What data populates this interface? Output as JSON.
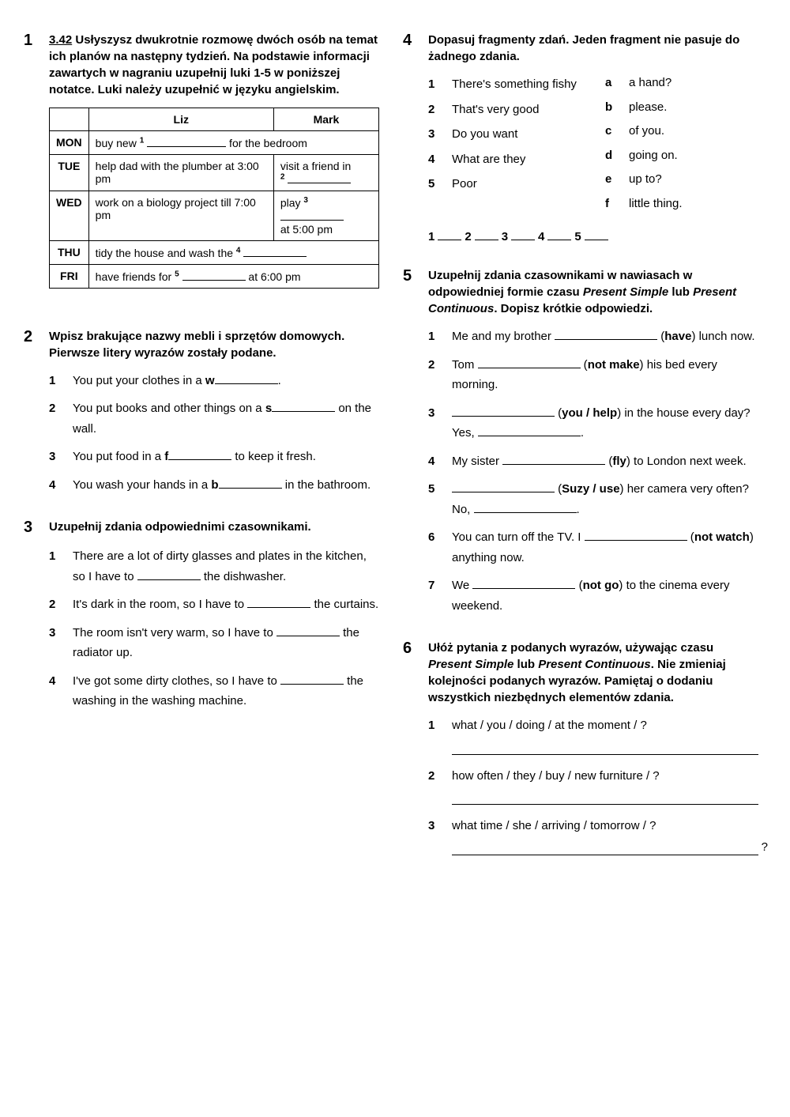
{
  "ex1": {
    "num": "1",
    "ref": "3.42",
    "title_rest": " Usłyszysz dwukrotnie rozmowę dwóch osób na temat ich planów na następny tydzień. Na podstawie informacji zawartych w nagraniu uzupełnij luki 1-5 w poniższej notatce. Luki należy uzupełnić w języku angielskim.",
    "headers": [
      "",
      "Liz",
      "Mark"
    ],
    "rows": [
      {
        "day": "MON",
        "liz_pre": "buy new ",
        "sup": "1",
        "mark_post": " for the bedroom",
        "colspan": true
      },
      {
        "day": "TUE",
        "liz": "help dad with the plumber at 3:00 pm",
        "mark_pre": "visit a friend in ",
        "mark_sup": "2"
      },
      {
        "day": "WED",
        "liz": "work on a biology project till 7:00 pm",
        "mark_pre": "play ",
        "mark_sup": "3",
        "mark_post": " at 5:00 pm"
      },
      {
        "day": "THU",
        "full_pre": "tidy the house and wash the ",
        "full_sup": "4"
      },
      {
        "day": "FRI",
        "full_pre": "have friends for ",
        "full_sup": "5",
        "full_post": " at 6:00 pm"
      }
    ]
  },
  "ex2": {
    "num": "2",
    "title": "Wpisz brakujące nazwy mebli i sprzętów domowych. Pierwsze litery wyrazów zostały podane.",
    "items": [
      {
        "pre": "You put your clothes in a ",
        "letter": "w",
        "post": "."
      },
      {
        "pre": "You put books and other things on a ",
        "letter": "s",
        "post": " on the wall."
      },
      {
        "pre": "You put food in a ",
        "letter": "f",
        "post": " to keep it fresh."
      },
      {
        "pre": "You wash your hands in a ",
        "letter": "b",
        "post": " in the bathroom."
      }
    ]
  },
  "ex3": {
    "num": "3",
    "title": "Uzupełnij zdania odpowiednimi czasownikami.",
    "items": [
      "There are a lot of dirty glasses and plates in the kitchen, so I have to __________ the dishwasher.",
      "It's dark in the room, so I have to __________ the curtains.",
      "The room isn't very warm, so I have to __________ the radiator up.",
      "I've got some dirty clothes, so I have to __________ the washing in the washing machine."
    ]
  },
  "ex4": {
    "num": "4",
    "title": "Dopasuj fragmenty zdań. Jeden fragment nie pasuje do żadnego zdania.",
    "left": [
      "There's something fishy",
      "That's very good",
      "Do you want",
      "What are they",
      "Poor"
    ],
    "right": [
      {
        "l": "a",
        "t": "a hand?"
      },
      {
        "l": "b",
        "t": "please."
      },
      {
        "l": "c",
        "t": "of you."
      },
      {
        "l": "d",
        "t": "going on."
      },
      {
        "l": "e",
        "t": "up to?"
      },
      {
        "l": "f",
        "t": "little thing."
      }
    ],
    "answers": [
      "1",
      "2",
      "3",
      "4",
      "5"
    ]
  },
  "ex5": {
    "num": "5",
    "title_a": "Uzupełnij zdania czasownikami w nawiasach w odpowiedniej formie czasu ",
    "ps": "Present Simple",
    "lub": " lub ",
    "pc": "Present Continuous",
    "title_b": ". Dopisz krótkie odpowiedzi.",
    "items": [
      {
        "parts": [
          "Me and my brother ",
          {
            "blank": "lg"
          },
          " (",
          {
            "b": "have"
          },
          ") lunch now."
        ]
      },
      {
        "parts": [
          "Tom ",
          {
            "blank": "lg"
          },
          " (",
          {
            "b": "not make"
          },
          ") his bed every morning."
        ]
      },
      {
        "parts": [
          {
            "blank": "lg"
          },
          " (",
          {
            "b": "you / help"
          },
          ") in the house every day? Yes, ",
          {
            "blank": "lg"
          },
          "."
        ]
      },
      {
        "parts": [
          "My sister ",
          {
            "blank": "lg"
          },
          " (",
          {
            "b": "fly"
          },
          ") to London next week."
        ]
      },
      {
        "parts": [
          {
            "blank": "lg"
          },
          " (",
          {
            "b": "Suzy / use"
          },
          ") her camera very often? No, ",
          {
            "blank": "lg"
          },
          "."
        ]
      },
      {
        "parts": [
          "You can turn off the TV. I ",
          {
            "blank": "lg"
          },
          " (",
          {
            "b": "not watch"
          },
          ") anything now."
        ]
      },
      {
        "parts": [
          "We ",
          {
            "blank": "lg"
          },
          " (",
          {
            "b": "not go"
          },
          ") to the cinema every weekend."
        ]
      }
    ]
  },
  "ex6": {
    "num": "6",
    "title_a": "Ułóż pytania z podanych wyrazów, używając czasu ",
    "ps": "Present Simple",
    "lub": " lub ",
    "pc": "Present Continuous",
    "title_b": ". Nie zmieniaj kolejności podanych wyrazów. Pamiętaj o dodaniu wszystkich niezbędnych elementów zdania.",
    "items": [
      "what / you / doing / at the moment / ?",
      "how often / they / buy / new furniture / ?",
      "what time / she / arriving / tomorrow / ?"
    ]
  }
}
